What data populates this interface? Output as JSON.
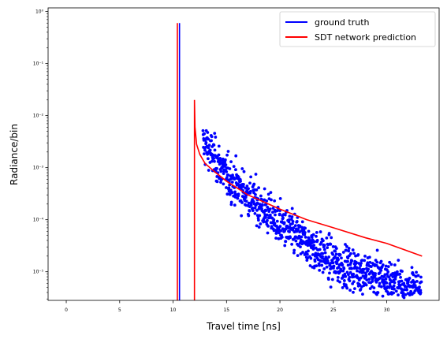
{
  "chart_data": {
    "type": "scatter",
    "title": "",
    "xlabel": "Travel time [ns]",
    "ylabel": "Radiance/bin",
    "xlim": [
      -1.7,
      34.9
    ],
    "ylim_log10": [
      -5.55,
      0.07
    ],
    "yscale": "log",
    "grid": false,
    "legend_position": "top-right",
    "xticks": [
      0,
      5,
      10,
      15,
      20,
      25,
      30
    ],
    "xtick_labels": [
      "0",
      "5",
      "10",
      "15",
      "20",
      "25",
      "30"
    ],
    "yticks_log10": [
      0,
      -1,
      -2,
      -3,
      -4,
      -5
    ],
    "ytick_labels": [
      "10⁰",
      "10⁻¹",
      "10⁻²",
      "10⁻³",
      "10⁻⁴",
      "10⁻⁵"
    ],
    "series": [
      {
        "name": "ground truth",
        "color": "#0000ff",
        "style": "line+points",
        "spike": {
          "x": 10.6,
          "y_top": 0.6
        },
        "points": {
          "x_start": 12.8,
          "x_end": 33.3,
          "count": 1000,
          "trend": [
            [
              13.0,
              0.0028
            ],
            [
              15.0,
              0.0007
            ],
            [
              20.0,
              8e-05
            ],
            [
              25.0,
              1.5e-05
            ],
            [
              30.0,
              7e-06
            ],
            [
              33.0,
              4e-06
            ]
          ]
        }
      },
      {
        "name": "SDT network prediction",
        "color": "#ff0000",
        "style": "line",
        "spike": {
          "x": 10.4,
          "y_top": 0.6
        },
        "step": {
          "x": 12.0,
          "y_top": 0.02
        },
        "curve": [
          [
            12.0,
            0.02
          ],
          [
            12.05,
            0.006
          ],
          [
            12.2,
            0.0028
          ],
          [
            12.5,
            0.0018
          ],
          [
            13.0,
            0.0012
          ],
          [
            14.0,
            0.0008
          ],
          [
            15.0,
            0.00055
          ],
          [
            17.0,
            0.0003
          ],
          [
            20.0,
            0.00016
          ],
          [
            22.5,
            0.0001
          ],
          [
            25.0,
            7e-05
          ],
          [
            28.0,
            4.5e-05
          ],
          [
            30.0,
            3.5e-05
          ],
          [
            33.3,
            2e-05
          ]
        ]
      }
    ]
  }
}
